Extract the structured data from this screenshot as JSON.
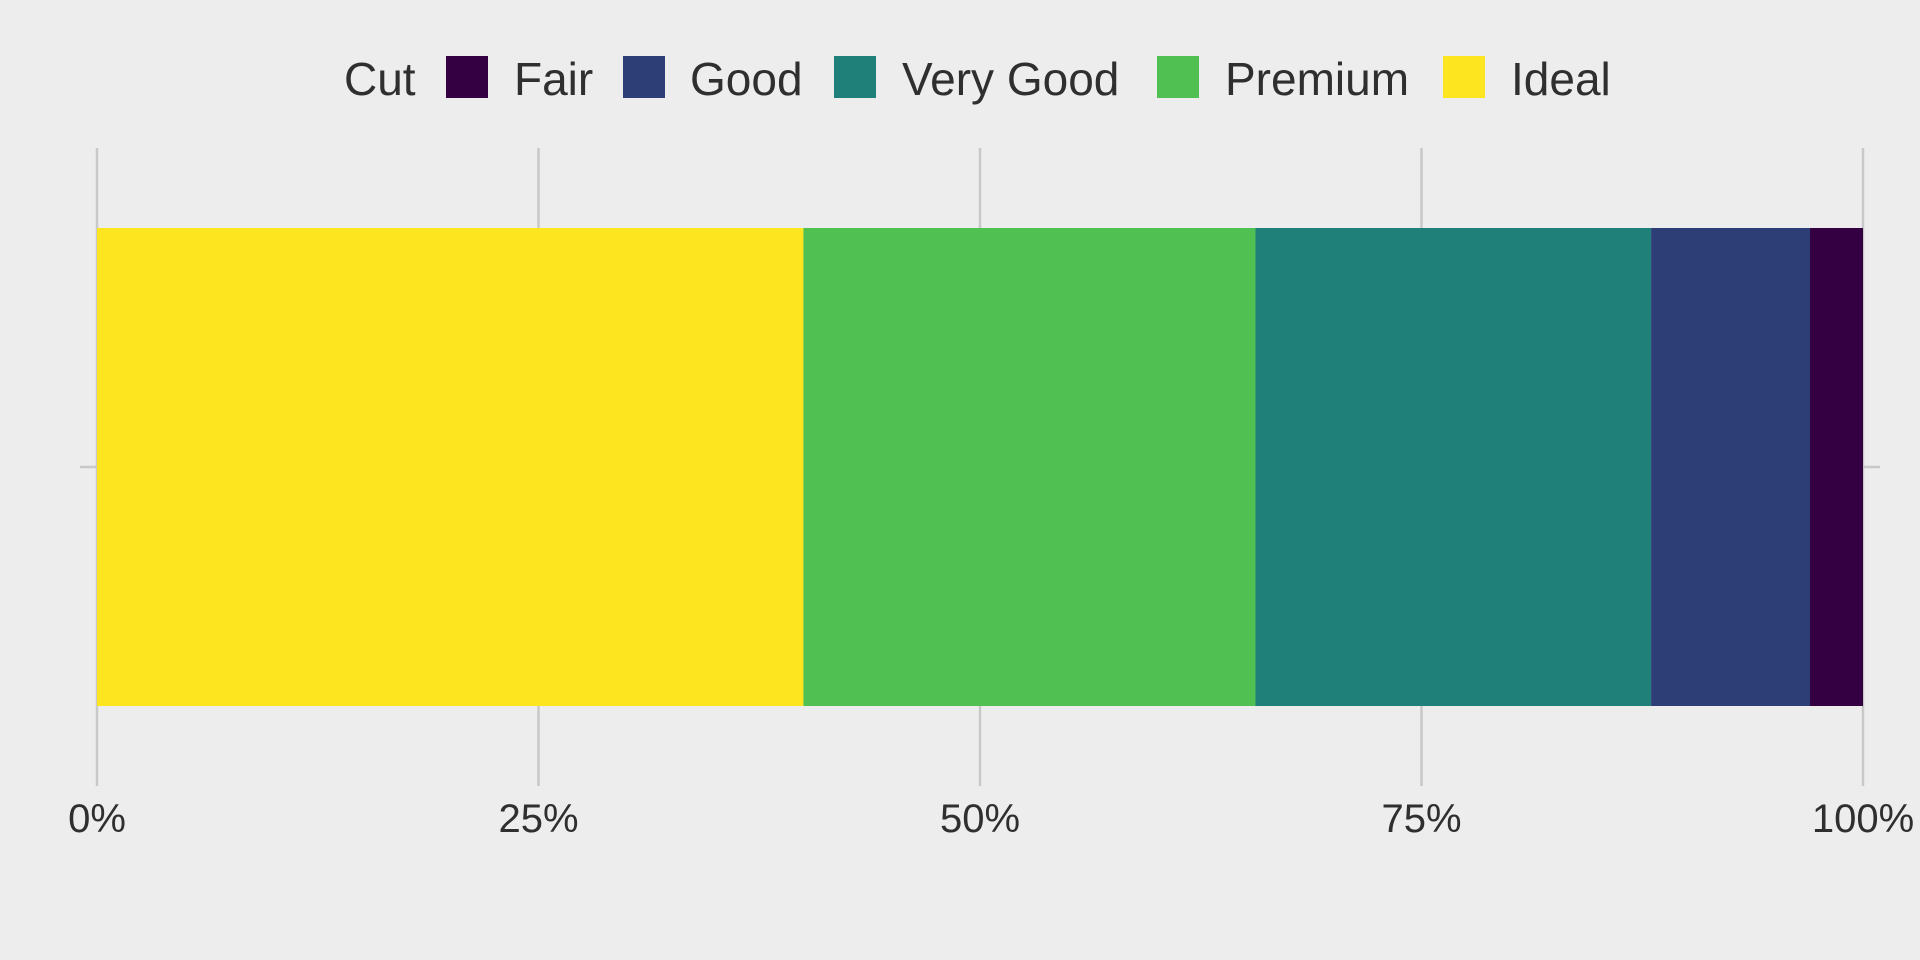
{
  "chart_data": {
    "type": "bar",
    "orientation": "horizontal",
    "stacked": true,
    "position": "fill",
    "legend": {
      "title": "Cut",
      "placement": "top",
      "entries": [
        "Fair",
        "Good",
        "Very Good",
        "Premium",
        "Ideal"
      ]
    },
    "categories": [
      ""
    ],
    "series": [
      {
        "name": "Fair",
        "values": [
          0.03
        ],
        "color": "#340042"
      },
      {
        "name": "Good",
        "values": [
          0.09
        ],
        "color": "#2d3d76"
      },
      {
        "name": "Very Good",
        "values": [
          0.224
        ],
        "color": "#1f7f79"
      },
      {
        "name": "Premium",
        "values": [
          0.256
        ],
        "color": "#51c052"
      },
      {
        "name": "Ideal",
        "values": [
          0.4
        ],
        "color": "#fde520"
      }
    ],
    "stack_order_left_to_right": [
      "Ideal",
      "Premium",
      "Very Good",
      "Good",
      "Fair"
    ],
    "xlim": [
      0,
      1
    ],
    "x_ticks": [
      0,
      0.25,
      0.5,
      0.75,
      1
    ],
    "x_tick_labels": [
      "0%",
      "25%",
      "50%",
      "75%",
      "100%"
    ],
    "xlabel": "",
    "ylabel": "",
    "grid": true,
    "background": "#ededed",
    "grid_color": "#c8c8c8",
    "text_color": "#2f2f2f"
  }
}
